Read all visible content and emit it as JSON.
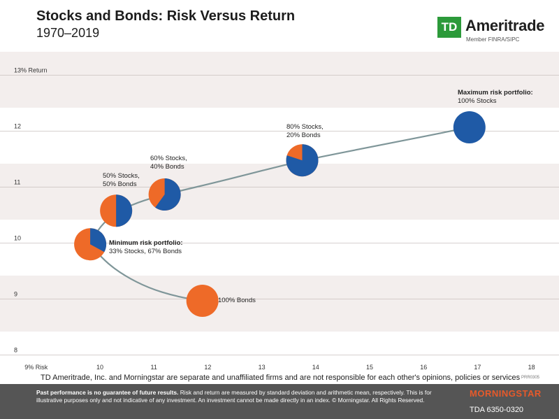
{
  "header": {
    "title": "Stocks and Bonds: Risk Versus Return",
    "subtitle": "1970–2019",
    "logo_mark": "TD",
    "logo_name": "Ameritrade",
    "logo_sub": "Member FINRA/SIPC"
  },
  "colors": {
    "stocks": "#1f5aa6",
    "bonds": "#ee6a28",
    "line": "#7f9699",
    "band": "#f3eeed",
    "footer": "#555555"
  },
  "chart_data": {
    "type": "scatter",
    "title": "Stocks and Bonds: Risk Versus Return",
    "xlabel": "Risk",
    "ylabel": "Return",
    "xlim": [
      8.8,
      18.2
    ],
    "ylim": [
      8,
      13
    ],
    "x_ticks": [
      "9% Risk",
      "10",
      "11",
      "12",
      "13",
      "14",
      "15",
      "16",
      "17",
      "18"
    ],
    "y_ticks": [
      "13% Return",
      "12",
      "11",
      "10",
      "9",
      "8"
    ],
    "frontier_path": [
      [
        11.9,
        8.97
      ],
      [
        11.4,
        9.05
      ],
      [
        10.9,
        9.2
      ],
      [
        10.45,
        9.42
      ],
      [
        10.1,
        9.67
      ],
      [
        9.82,
        9.98
      ],
      [
        10.0,
        10.3
      ],
      [
        10.3,
        10.55
      ],
      [
        10.7,
        10.73
      ],
      [
        11.2,
        10.87
      ],
      [
        12.3,
        11.12
      ],
      [
        13.75,
        11.48
      ],
      [
        15.2,
        11.75
      ],
      [
        16.85,
        12.07
      ]
    ],
    "portfolios": [
      {
        "name": "Minimum risk portfolio:",
        "detail": "33% Stocks, 67% Bonds",
        "risk": 9.82,
        "return": 9.98,
        "stocks_pct": 33,
        "bonds_pct": 67
      },
      {
        "name": "50% Stocks,",
        "detail": "50% Bonds",
        "risk": 10.3,
        "return": 10.58,
        "stocks_pct": 50,
        "bonds_pct": 50
      },
      {
        "name": "60% Stocks,",
        "detail": "40% Bonds",
        "risk": 11.2,
        "return": 10.87,
        "stocks_pct": 60,
        "bonds_pct": 40
      },
      {
        "name": "80% Stocks,",
        "detail": "20% Bonds",
        "risk": 13.75,
        "return": 11.48,
        "stocks_pct": 80,
        "bonds_pct": 20
      },
      {
        "name": "Maximum risk portfolio:",
        "detail": "100% Stocks",
        "risk": 16.85,
        "return": 12.07,
        "stocks_pct": 100,
        "bonds_pct": 0
      },
      {
        "name": "100% Bonds",
        "detail": "",
        "risk": 11.9,
        "return": 8.97,
        "stocks_pct": 0,
        "bonds_pct": 100
      }
    ]
  },
  "disclaimer": {
    "text": "TD Ameritrade, Inc. and Morningstar are separate and unaffiliated firms and are not responsible for each other's opinions, policies or services",
    "code": "PRR0305"
  },
  "footer": {
    "bold": "Past performance is no guarantee of future results.",
    "rest": " Risk and return are measured by standard deviation and arithmetic mean, respectively. This is for illustrative purposes only and not indicative of any investment. An investment cannot be made directly in an index. © Morningstar. All Rights Reserved.",
    "brand": "MORNINGSTAR",
    "code": "TDA 6350-0320"
  }
}
